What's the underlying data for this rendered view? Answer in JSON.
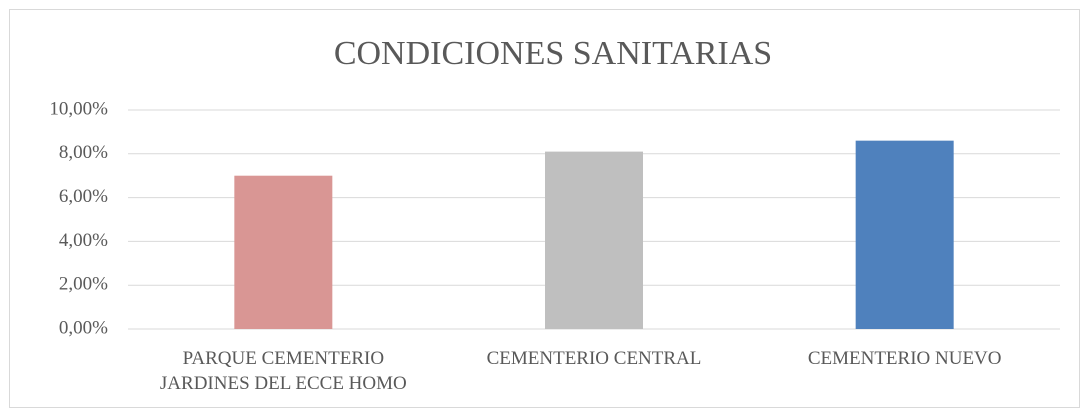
{
  "chart_data": {
    "type": "bar",
    "title": "CONDICIONES SANITARIAS",
    "categories": [
      "PARQUE CEMENTERIO JARDINES DEL ECCE HOMO",
      "CEMENTERIO CENTRAL",
      "CEMENTERIO NUEVO"
    ],
    "values": [
      7.0,
      8.1,
      8.6
    ],
    "colors": [
      "#d99694",
      "#bfbfbf",
      "#4f81bd"
    ],
    "ylim": [
      0,
      10
    ],
    "yticks": [
      {
        "value": 0,
        "label": "0,00%"
      },
      {
        "value": 2,
        "label": "2,00%"
      },
      {
        "value": 4,
        "label": "4,00%"
      },
      {
        "value": 6,
        "label": "6,00%"
      },
      {
        "value": 8,
        "label": "8,00%"
      },
      {
        "value": 10,
        "label": "10,00%"
      }
    ],
    "grid": true
  }
}
